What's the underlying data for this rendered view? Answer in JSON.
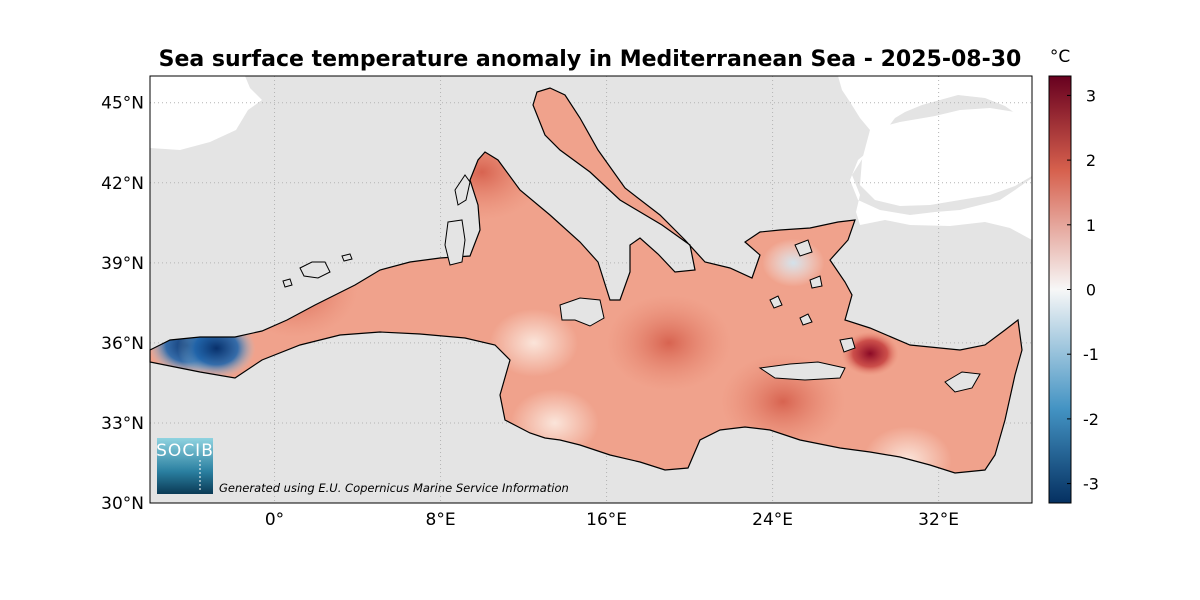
{
  "map": {
    "title": "Sea surface temperature anomaly in Mediterranean Sea - 2025-08-30",
    "region": "Mediterranean Sea",
    "date": "2025-08-30",
    "variable": "Sea surface temperature anomaly",
    "lon_range": [
      -6,
      36.5
    ],
    "lat_range": [
      30,
      46
    ],
    "lat_ticks": [
      {
        "value": 30,
        "label": "30°N"
      },
      {
        "value": 33,
        "label": "33°N"
      },
      {
        "value": 36,
        "label": "36°N"
      },
      {
        "value": 39,
        "label": "39°N"
      },
      {
        "value": 42,
        "label": "42°N"
      },
      {
        "value": 45,
        "label": "45°N"
      }
    ],
    "lon_ticks": [
      {
        "value": 0,
        "label": "0°"
      },
      {
        "value": 8,
        "label": "8°E"
      },
      {
        "value": 16,
        "label": "16°E"
      },
      {
        "value": 24,
        "label": "24°E"
      },
      {
        "value": 32,
        "label": "32°E"
      }
    ],
    "credit": "Generated using E.U. Copernicus Marine Service Information",
    "logo": "SOCIB",
    "colors": {
      "land": "#e4e4e4",
      "ocean_edge": "#ffffff",
      "base_anomaly": "#f0a28c",
      "grid": "#b4b4b4"
    }
  },
  "colorbar": {
    "unit": "°C",
    "min": -3.3,
    "max": 3.3,
    "ticks": [
      {
        "value": 3,
        "label": "3"
      },
      {
        "value": 2,
        "label": "2"
      },
      {
        "value": 1,
        "label": "1"
      },
      {
        "value": 0,
        "label": "0"
      },
      {
        "value": -1,
        "label": "-1"
      },
      {
        "value": -2,
        "label": "-2"
      },
      {
        "value": -3,
        "label": "-3"
      }
    ],
    "colors": {
      "top": "#67001f",
      "high": "#d6604d",
      "mid": "#f7f7f7",
      "low": "#4393c3",
      "bottom": "#053061"
    }
  },
  "anomaly_features": [
    {
      "name": "alboran-cold-core",
      "lon": -4.2,
      "lat": 35.9,
      "value": -3.0
    },
    {
      "name": "alboran-cold-core-2",
      "lon": -2.8,
      "lat": 35.8,
      "value": -3.2
    },
    {
      "name": "balearic-warm",
      "lon": 1.0,
      "lat": 38.0,
      "value": 2.0
    },
    {
      "name": "ligurian-warm",
      "lon": 10.0,
      "lat": 42.4,
      "value": 1.8
    },
    {
      "name": "lions-cool-patch",
      "lon": 3.7,
      "lat": 41.8,
      "value": -0.4
    },
    {
      "name": "levantine-hotspot",
      "lon": 28.7,
      "lat": 35.6,
      "value": 2.8
    },
    {
      "name": "aegean-cool",
      "lon": 25.0,
      "lat": 39.0,
      "value": -0.8
    },
    {
      "name": "sicily-channel-cool",
      "lon": 12.5,
      "lat": 36.0,
      "value": 0.2
    },
    {
      "name": "libya-coast-cool",
      "lon": 13.5,
      "lat": 33.0,
      "value": 0.3
    },
    {
      "name": "nile-delta-cool",
      "lon": 30.5,
      "lat": 31.6,
      "value": 0.4
    },
    {
      "name": "ionian-warm",
      "lon": 19.0,
      "lat": 36.0,
      "value": 1.7
    },
    {
      "name": "crete-south-warm",
      "lon": 24.5,
      "lat": 33.8,
      "value": 1.6
    }
  ]
}
